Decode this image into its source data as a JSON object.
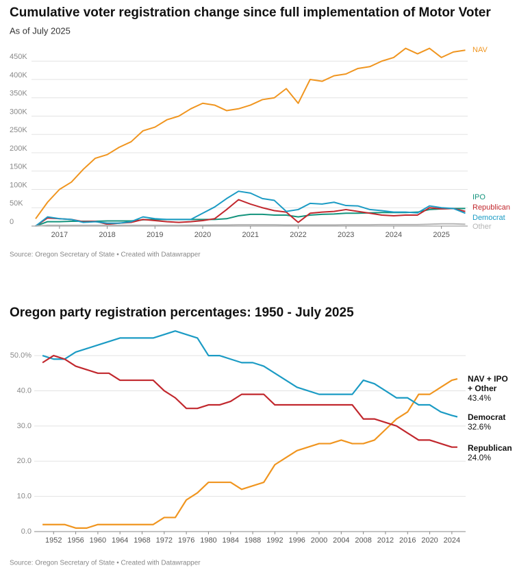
{
  "chart_data": [
    {
      "type": "line",
      "title": "Cumulative voter registration change since full implementation of Motor Voter",
      "subtitle": "As of July 2025",
      "source": "Source: Oregon Secretary of State • Created with Datawrapper",
      "x": [
        2016.5,
        2016.75,
        2017,
        2017.25,
        2017.5,
        2017.75,
        2018,
        2018.25,
        2018.5,
        2018.75,
        2019,
        2019.25,
        2019.5,
        2019.75,
        2020,
        2020.25,
        2020.5,
        2020.75,
        2021,
        2021.25,
        2021.5,
        2021.75,
        2022,
        2022.25,
        2022.5,
        2022.75,
        2023,
        2023.25,
        2023.5,
        2023.75,
        2024,
        2024.25,
        2024.5,
        2024.75,
        2025,
        2025.25,
        2025.5
      ],
      "series": [
        {
          "name": "NAV",
          "color": "#f0951f",
          "values": [
            20000,
            65000,
            100000,
            120000,
            155000,
            185000,
            195000,
            215000,
            230000,
            260000,
            270000,
            290000,
            300000,
            320000,
            335000,
            330000,
            315000,
            320000,
            330000,
            345000,
            350000,
            375000,
            335000,
            400000,
            395000,
            410000,
            415000,
            430000,
            435000,
            450000,
            460000,
            485000,
            470000,
            485000,
            460000,
            475000,
            480000
          ]
        },
        {
          "name": "IPO",
          "color": "#13937c",
          "values": [
            0,
            12000,
            12000,
            13000,
            13000,
            13000,
            14000,
            14000,
            14000,
            17000,
            18000,
            18000,
            18000,
            18000,
            18000,
            18000,
            20000,
            28000,
            32000,
            32000,
            30000,
            30000,
            25000,
            30000,
            32000,
            33000,
            35000,
            35000,
            36000,
            37000,
            37000,
            37000,
            38000,
            45000,
            47000,
            48000,
            48000
          ]
        },
        {
          "name": "Republican",
          "color": "#c1272d",
          "values": [
            0,
            22000,
            20000,
            18000,
            12000,
            13000,
            5000,
            8000,
            10000,
            18000,
            15000,
            12000,
            10000,
            12000,
            15000,
            20000,
            45000,
            72000,
            60000,
            50000,
            42000,
            38000,
            10000,
            35000,
            38000,
            40000,
            45000,
            40000,
            35000,
            30000,
            28000,
            30000,
            30000,
            50000,
            47000,
            48000,
            40000
          ]
        },
        {
          "name": "Democrat",
          "color": "#1b9bc4",
          "values": [
            0,
            25000,
            20000,
            18000,
            10000,
            12000,
            8000,
            8000,
            12000,
            25000,
            20000,
            18000,
            18000,
            18000,
            35000,
            52000,
            75000,
            95000,
            90000,
            75000,
            70000,
            40000,
            45000,
            62000,
            60000,
            65000,
            56000,
            55000,
            45000,
            42000,
            38000,
            38000,
            36000,
            55000,
            50000,
            48000,
            35000
          ]
        },
        {
          "name": "Other",
          "color": "#b5b5b5",
          "values": [
            0,
            2000,
            2000,
            2000,
            2000,
            2000,
            2000,
            2000,
            2000,
            2000,
            2000,
            2000,
            2000,
            2500,
            2500,
            3000,
            3000,
            3500,
            3500,
            3500,
            3500,
            3000,
            3000,
            3000,
            3000,
            3000,
            3500,
            3500,
            3500,
            4000,
            4000,
            4000,
            4000,
            5000,
            6000,
            6000,
            5000
          ]
        }
      ],
      "xlim": [
        2016.5,
        2025.55
      ],
      "xticks": [
        2017,
        2018,
        2019,
        2020,
        2021,
        2022,
        2023,
        2024,
        2025
      ],
      "ylim": [
        0,
        500000
      ],
      "yticks": [
        0,
        {
          "value": 50000,
          "label": "50K"
        },
        {
          "value": 100000,
          "label": "100K"
        },
        {
          "value": 150000,
          "label": "150K"
        },
        {
          "value": 200000,
          "label": "200K"
        },
        {
          "value": 250000,
          "label": "250K"
        },
        {
          "value": 300000,
          "label": "300K"
        },
        {
          "value": 350000,
          "label": "350K"
        },
        {
          "value": 400000,
          "label": "400K"
        },
        {
          "value": 450000,
          "label": "450K"
        }
      ],
      "grid": true
    },
    {
      "type": "line",
      "title": "Oregon party registration percentages: 1950 - July 2025",
      "source": "Source: Oregon Secretary of State • Created with Datawrapper",
      "x": [
        1950,
        1952,
        1954,
        1956,
        1958,
        1960,
        1962,
        1964,
        1966,
        1968,
        1970,
        1972,
        1974,
        1976,
        1978,
        1980,
        1982,
        1984,
        1986,
        1988,
        1990,
        1992,
        1994,
        1996,
        1998,
        2000,
        2002,
        2004,
        2006,
        2008,
        2010,
        2012,
        2014,
        2016,
        2018,
        2020,
        2022,
        2024,
        2025
      ],
      "series": [
        {
          "name": "NAV + IPO + Other",
          "color": "#f0951f",
          "values": [
            2,
            2,
            2,
            1,
            1,
            2,
            2,
            2,
            2,
            2,
            2,
            4,
            4,
            9,
            11,
            14,
            14,
            14,
            12,
            13,
            14,
            19,
            21,
            23,
            24,
            25,
            25,
            26,
            25,
            25,
            26,
            29,
            32,
            34,
            39,
            39,
            41,
            43,
            43.4
          ],
          "value_labels": [
            null,
            null,
            null,
            null,
            null,
            null,
            null,
            null,
            null,
            null,
            null,
            null,
            null,
            null,
            null,
            null,
            null,
            null,
            null,
            null,
            null,
            null,
            null,
            null,
            null,
            null,
            null,
            null,
            null,
            null,
            null,
            null,
            null,
            null,
            null,
            null,
            null,
            null,
            "43.4%"
          ]
        },
        {
          "name": "Democrat",
          "color": "#1b9bc4",
          "values": [
            50,
            49,
            49,
            51,
            52,
            53,
            54,
            55,
            55,
            55,
            55,
            56,
            57,
            56,
            55,
            50,
            50,
            49,
            48,
            48,
            47,
            45,
            43,
            41,
            40,
            39,
            39,
            39,
            39,
            43,
            42,
            40,
            38,
            38,
            36,
            36,
            34,
            33,
            32.6
          ],
          "value_labels": [
            null,
            null,
            null,
            null,
            null,
            null,
            null,
            null,
            null,
            null,
            null,
            null,
            null,
            null,
            null,
            null,
            null,
            null,
            null,
            null,
            null,
            null,
            null,
            null,
            null,
            null,
            null,
            null,
            null,
            null,
            null,
            null,
            null,
            null,
            null,
            null,
            null,
            null,
            "32.6%"
          ]
        },
        {
          "name": "Republican",
          "color": "#c1272d",
          "values": [
            48,
            50,
            49,
            47,
            46,
            45,
            45,
            43,
            43,
            43,
            43,
            40,
            38,
            35,
            35,
            36,
            36,
            37,
            39,
            39,
            39,
            36,
            36,
            36,
            36,
            36,
            36,
            36,
            36,
            32,
            32,
            31,
            30,
            28,
            26,
            26,
            25,
            24,
            24.0
          ],
          "value_labels": [
            null,
            null,
            null,
            null,
            null,
            null,
            null,
            null,
            null,
            null,
            null,
            null,
            null,
            null,
            null,
            null,
            null,
            null,
            null,
            null,
            null,
            null,
            null,
            null,
            null,
            null,
            null,
            null,
            null,
            null,
            null,
            null,
            null,
            null,
            null,
            null,
            null,
            null,
            "24.0%"
          ]
        }
      ],
      "xlim": [
        1948.5,
        2025.5
      ],
      "xticks": [
        1952,
        1956,
        1960,
        1964,
        1968,
        1972,
        1976,
        1980,
        1984,
        1988,
        1992,
        1996,
        2000,
        2004,
        2008,
        2012,
        2016,
        2020,
        2024
      ],
      "ylim": [
        0,
        58
      ],
      "yticks": [
        {
          "value": 0,
          "label": "0.0"
        },
        {
          "value": 10,
          "label": "10.0"
        },
        {
          "value": 20,
          "label": "20.0"
        },
        {
          "value": 30,
          "label": "30.0"
        },
        {
          "value": 40,
          "label": "40.0"
        },
        {
          "value": 50,
          "label": "50.0%"
        }
      ],
      "grid": true
    }
  ]
}
